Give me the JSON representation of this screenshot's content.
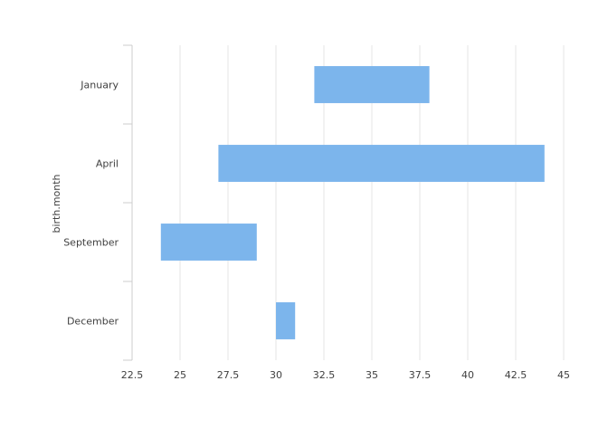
{
  "chart_data": {
    "type": "bar",
    "orientation": "horizontal",
    "variant": "range",
    "title": "",
    "xlabel": "",
    "ylabel": "birth.month",
    "categories": [
      "January",
      "April",
      "September",
      "December"
    ],
    "ranges": [
      {
        "category": "January",
        "start": 32,
        "end": 38
      },
      {
        "category": "April",
        "start": 27,
        "end": 44
      },
      {
        "category": "September",
        "start": 24,
        "end": 29
      },
      {
        "category": "December",
        "start": 30,
        "end": 31
      }
    ],
    "xlim": [
      22.5,
      45
    ],
    "x_ticks": [
      "22.5",
      "25",
      "27.5",
      "30",
      "32.5",
      "35",
      "37.5",
      "40",
      "42.5",
      "45"
    ],
    "grid": "vertical",
    "legend": "none",
    "colors": {
      "bar": "#7cb5ec",
      "grid": "#e6e6e6",
      "axis": "#cccccc",
      "text": "#404040"
    }
  }
}
